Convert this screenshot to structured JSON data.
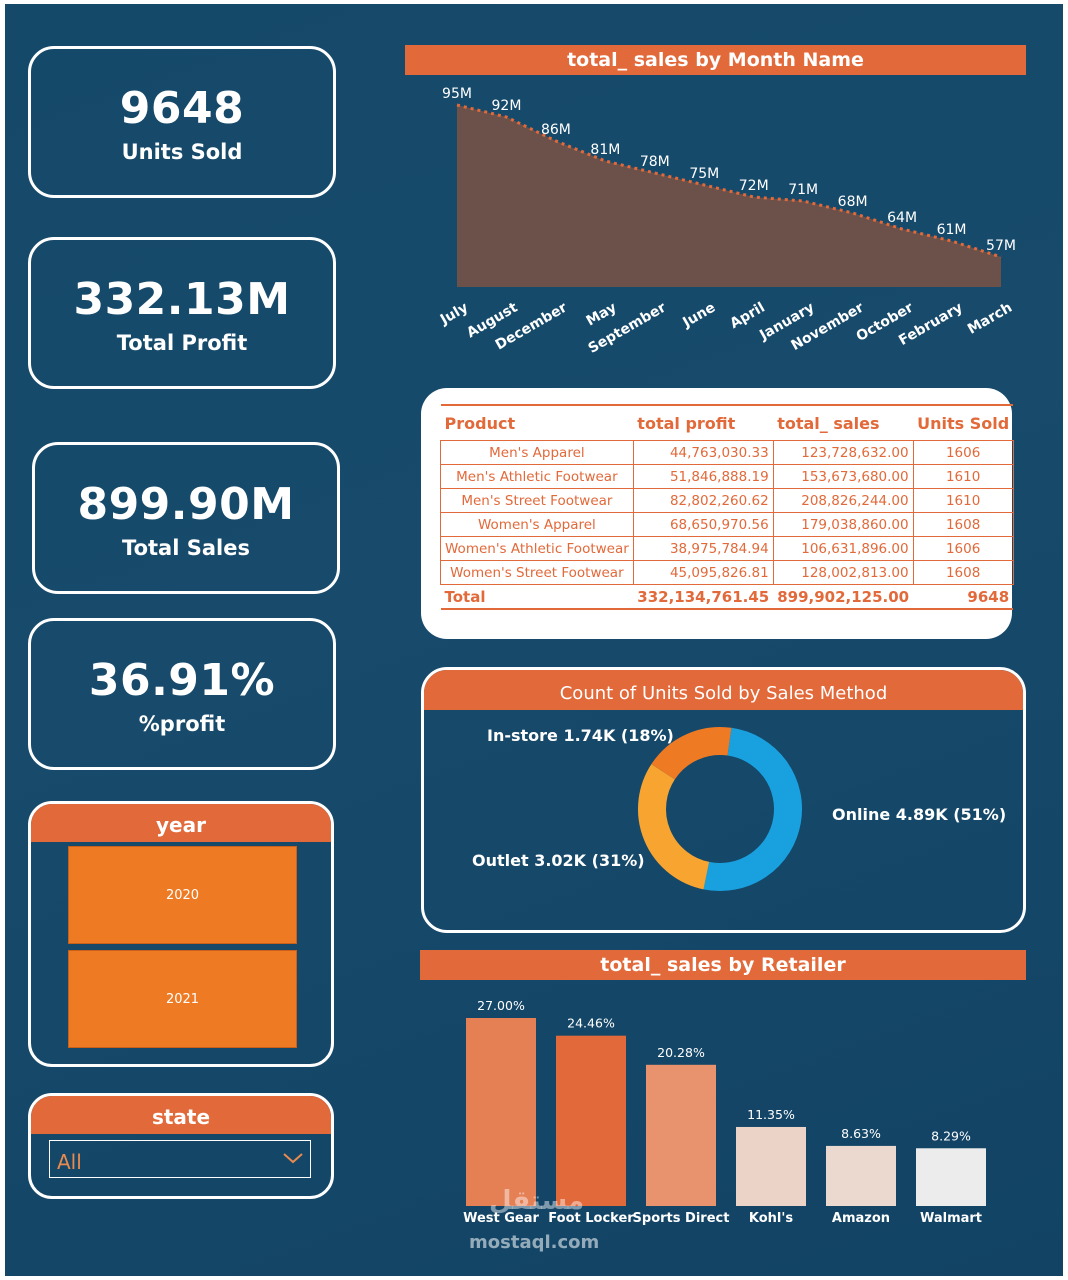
{
  "kpis": {
    "units_sold": {
      "value": "9648",
      "label": "Units Sold"
    },
    "total_profit": {
      "value": "332.13M",
      "label": "Total Profit"
    },
    "total_sales": {
      "value": "899.90M",
      "label": "Total Sales"
    },
    "profit_pct": {
      "value": "36.91%",
      "label": "%profit"
    }
  },
  "year_slicer": {
    "title": "year",
    "options": [
      "2020",
      "2021"
    ]
  },
  "state_slicer": {
    "title": "state",
    "selected": "All"
  },
  "colors": {
    "accent": "#e2693a",
    "background": "#174a6b",
    "area": "#6b5149",
    "online": "#19a1df",
    "outlet": "#f7a530",
    "instore": "#ef7a24"
  },
  "product_table": {
    "headers": [
      "Product",
      "total profit",
      "total_ sales",
      "Units Sold"
    ],
    "rows": [
      [
        "Men's Apparel",
        "44,763,030.33",
        "123,728,632.00",
        "1606"
      ],
      [
        "Men's Athletic Footwear",
        "51,846,888.19",
        "153,673,680.00",
        "1610"
      ],
      [
        "Men's Street Footwear",
        "82,802,260.62",
        "208,826,244.00",
        "1610"
      ],
      [
        "Women's Apparel",
        "68,650,970.56",
        "179,038,860.00",
        "1608"
      ],
      [
        "Women's Athletic Footwear",
        "38,975,784.94",
        "106,631,896.00",
        "1606"
      ],
      [
        "Women's Street Footwear",
        "45,095,826.81",
        "128,002,813.00",
        "1608"
      ]
    ],
    "total": [
      "Total",
      "332,134,761.45",
      "899,902,125.00",
      "9648"
    ]
  },
  "chart_data": [
    {
      "type": "area",
      "title": "total_ sales by Month Name",
      "categories": [
        "July",
        "August",
        "December",
        "May",
        "September",
        "June",
        "April",
        "January",
        "November",
        "October",
        "February",
        "March"
      ],
      "values": [
        95,
        92,
        86,
        81,
        78,
        75,
        72,
        71,
        68,
        64,
        61,
        57
      ],
      "data_labels": [
        "95M",
        "92M",
        "86M",
        "81M",
        "78M",
        "75M",
        "72M",
        "71M",
        "68M",
        "64M",
        "61M",
        "57M"
      ],
      "unit": "M",
      "ylim": [
        0,
        95
      ]
    },
    {
      "type": "pie",
      "title": "Count of Units Sold by Sales Method",
      "categories": [
        "Online",
        "Outlet",
        "In-store"
      ],
      "values": [
        4.89,
        3.02,
        1.74
      ],
      "percent": [
        51,
        31,
        18
      ],
      "data_labels": [
        "Online 4.89K (51%)",
        "Outlet 3.02K (31%)",
        "In-store 1.74K (18%)"
      ],
      "unit": "K"
    },
    {
      "type": "bar",
      "title": "total_ sales by Retailer",
      "categories": [
        "West Gear",
        "Foot Locker",
        "Sports Direct",
        "Kohl's",
        "Amazon",
        "Walmart"
      ],
      "values": [
        27.0,
        24.46,
        20.28,
        11.35,
        8.63,
        8.29
      ],
      "data_labels": [
        "27.00%",
        "24.46%",
        "20.28%",
        "11.35%",
        "8.63%",
        "8.29%"
      ],
      "bar_colors": [
        "#e57f54",
        "#e2693a",
        "#e8936e",
        "#ebd3c7",
        "#ebd8ce",
        "#ececec"
      ],
      "ylim": [
        0,
        27
      ]
    }
  ],
  "watermark": {
    "logo": "مستقل",
    "domain": "mostaql.com"
  }
}
